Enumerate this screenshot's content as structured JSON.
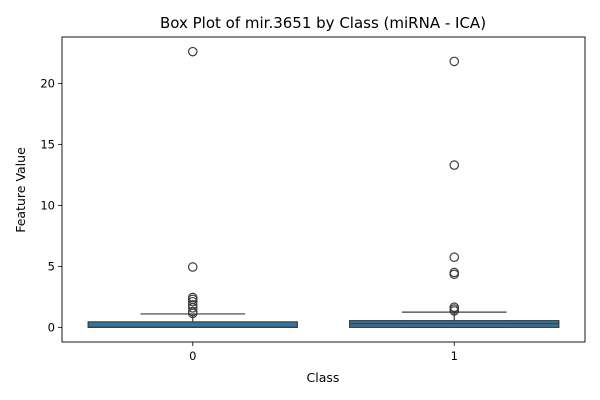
{
  "chart_data": {
    "type": "box",
    "title": "Box Plot of mir.3651 by Class (miRNA - ICA)",
    "xlabel": "Class",
    "ylabel": "Feature Value",
    "categories": [
      "0",
      "1"
    ],
    "ylim": [
      -1.2,
      23.8
    ],
    "yticks": [
      0,
      5,
      10,
      15,
      20
    ],
    "grid": false,
    "box_color": "#3274a1",
    "boxes": [
      {
        "category": "0",
        "whisker_low": 0.0,
        "q1": 0.0,
        "median": 0.0,
        "q3": 0.45,
        "whisker_high": 1.1,
        "outliers": [
          1.15,
          1.3,
          1.6,
          1.85,
          2.1,
          2.3,
          2.45,
          4.95,
          22.6
        ]
      },
      {
        "category": "1",
        "whisker_low": 0.0,
        "q1": 0.0,
        "median": 0.3,
        "q3": 0.55,
        "whisker_high": 1.25,
        "outliers": [
          1.35,
          1.5,
          1.65,
          4.35,
          4.5,
          5.75,
          13.3,
          21.8
        ]
      }
    ]
  }
}
